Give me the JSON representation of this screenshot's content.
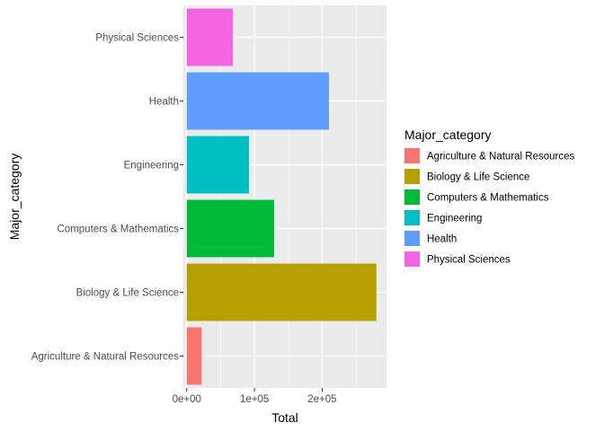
{
  "chart_data": {
    "type": "bar",
    "orientation": "horizontal",
    "categories": [
      "Agriculture & Natural Resources",
      "Biology & Life Science",
      "Computers & Mathematics",
      "Engineering",
      "Health",
      "Physical Sciences"
    ],
    "values": [
      22000,
      280000,
      129000,
      92000,
      210000,
      68000
    ],
    "colors": [
      "#F8766D",
      "#B79F00",
      "#00BA38",
      "#00BFC4",
      "#619CFF",
      "#F564E3"
    ],
    "xlabel": "Total",
    "ylabel": "Major_category",
    "xlim": [
      -5000,
      295000
    ],
    "xticks": [
      0,
      100000,
      200000
    ],
    "xtick_labels": [
      "0e+00",
      "1e+05",
      "2e+05"
    ],
    "grid": true,
    "panel_background": "#EBEBEB",
    "legend": {
      "title": "Major_category",
      "placement": "right",
      "entries": [
        "Agriculture & Natural Resources",
        "Biology & Life Science",
        "Computers & Mathematics",
        "Engineering",
        "Health",
        "Physical Sciences"
      ]
    }
  }
}
